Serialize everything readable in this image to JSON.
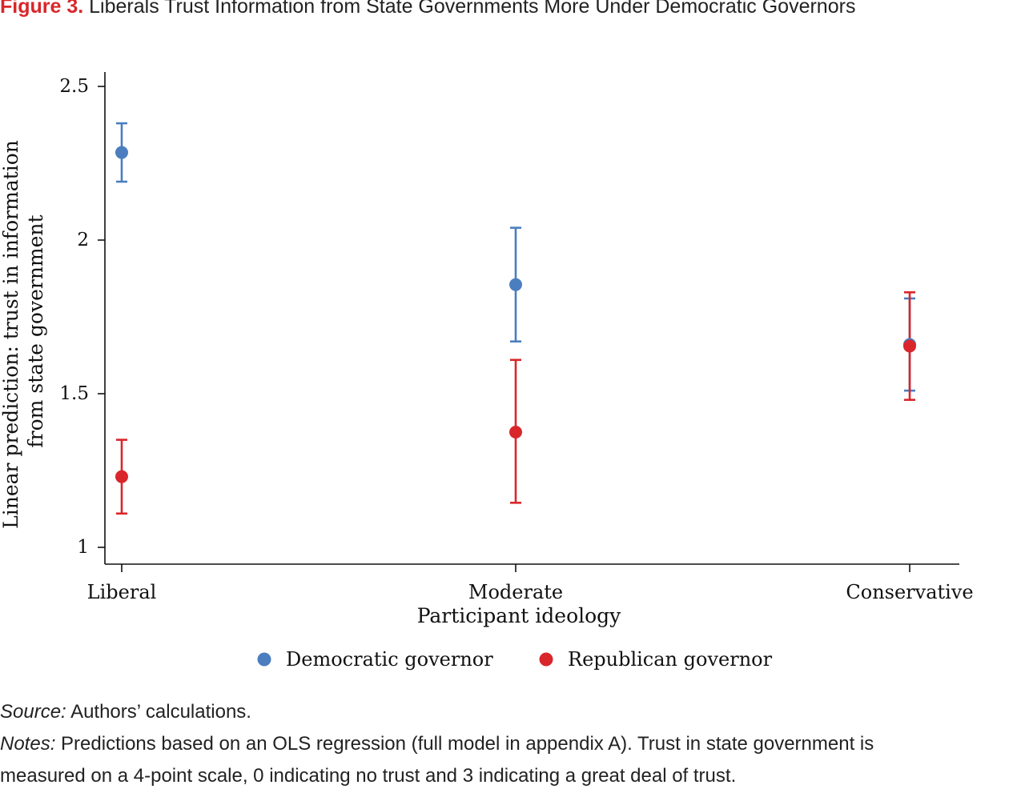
{
  "figure": {
    "label": "Figure 3.",
    "title": "Liberals Trust Information from State Governments More Under Democratic Governors"
  },
  "chart_data": {
    "type": "scatter",
    "title": "",
    "xlabel": "Participant ideology",
    "ylabel_line1": "Linear prediction: trust in information",
    "ylabel_line2": "from state government",
    "categories": [
      "Liberal",
      "Moderate",
      "Conservative"
    ],
    "y_ticks": [
      "1",
      "1.5",
      "2",
      "2.5"
    ],
    "y_tick_values": [
      1,
      1.5,
      2,
      2.5
    ],
    "ylim": [
      0.95,
      2.55
    ],
    "grid": false,
    "legend_placement": "bottom",
    "series": [
      {
        "name": "Democratic governor",
        "color": "#4a7ebf",
        "values": [
          2.285,
          1.855,
          1.66
        ],
        "ci_low": [
          2.19,
          1.67,
          1.51
        ],
        "ci_high": [
          2.38,
          2.04,
          1.81
        ]
      },
      {
        "name": "Republican governor",
        "color": "#d9262a",
        "values": [
          1.23,
          1.375,
          1.655
        ],
        "ci_low": [
          1.11,
          1.145,
          1.48
        ],
        "ci_high": [
          1.35,
          1.61,
          1.83
        ]
      }
    ]
  },
  "footer": {
    "source_label": "Source:",
    "source_text": " Authors’ calculations.",
    "notes_label": "Notes:",
    "notes_text_1": " Predictions based on an OLS regression (full model in appendix A). Trust in state government is",
    "notes_text_2": "measured on a 4-point scale, 0 indicating no trust and 3 indicating a great deal of trust."
  }
}
